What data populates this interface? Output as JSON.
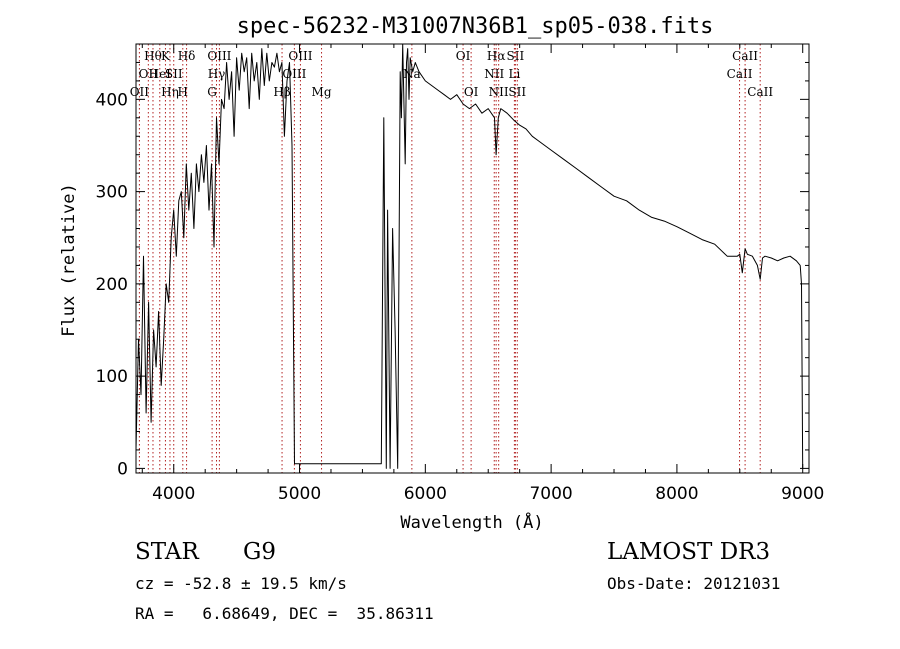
{
  "chart_data": {
    "type": "line",
    "title": "spec-56232-M31007N36B1_sp05-038.fits",
    "xlabel": "Wavelength (Å)",
    "ylabel": "Flux (relative)",
    "xlim": [
      3700,
      9050
    ],
    "ylim": [
      -5,
      460
    ],
    "x_ticks": [
      4000,
      5000,
      6000,
      7000,
      8000,
      9000
    ],
    "y_ticks": [
      0,
      100,
      200,
      300,
      400
    ],
    "line_color": "#000000",
    "marker_color": "#b22222",
    "series": [
      {
        "name": "flux",
        "x": [
          3700,
          3720,
          3740,
          3760,
          3780,
          3800,
          3820,
          3840,
          3860,
          3880,
          3900,
          3920,
          3940,
          3960,
          3980,
          4000,
          4020,
          4040,
          4060,
          4080,
          4100,
          4120,
          4140,
          4160,
          4180,
          4200,
          4220,
          4240,
          4260,
          4280,
          4300,
          4320,
          4340,
          4360,
          4380,
          4400,
          4420,
          4440,
          4460,
          4480,
          4500,
          4520,
          4540,
          4560,
          4580,
          4600,
          4620,
          4640,
          4660,
          4680,
          4700,
          4720,
          4740,
          4760,
          4780,
          4800,
          4820,
          4840,
          4860,
          4880,
          4900,
          4920,
          4940,
          4960,
          5000,
          5100,
          5300,
          5500,
          5650,
          5670,
          5690,
          5700,
          5720,
          5740,
          5760,
          5780,
          5800,
          5810,
          5820,
          5840,
          5850,
          5860,
          5870,
          5880,
          5900,
          5920,
          5950,
          6000,
          6050,
          6100,
          6150,
          6200,
          6250,
          6300,
          6350,
          6400,
          6450,
          6500,
          6550,
          6563,
          6580,
          6600,
          6650,
          6700,
          6750,
          6800,
          6850,
          6900,
          6950,
          7000,
          7100,
          7200,
          7300,
          7400,
          7500,
          7600,
          7700,
          7800,
          7900,
          8000,
          8100,
          8200,
          8300,
          8400,
          8480,
          8500,
          8520,
          8542,
          8560,
          8600,
          8640,
          8662,
          8680,
          8700,
          8750,
          8800,
          8850,
          8900,
          8950,
          8980,
          8990,
          9000
        ],
        "y": [
          20,
          140,
          80,
          230,
          60,
          180,
          50,
          150,
          110,
          170,
          90,
          140,
          200,
          180,
          250,
          280,
          230,
          290,
          300,
          250,
          330,
          280,
          320,
          260,
          330,
          300,
          340,
          310,
          350,
          280,
          330,
          240,
          380,
          330,
          400,
          390,
          440,
          400,
          430,
          360,
          445,
          410,
          450,
          430,
          445,
          390,
          450,
          420,
          440,
          400,
          455,
          415,
          450,
          420,
          440,
          435,
          450,
          430,
          440,
          360,
          420,
          440,
          350,
          5,
          5,
          5,
          5,
          5,
          5,
          380,
          0,
          280,
          0,
          260,
          150,
          0,
          430,
          380,
          460,
          330,
          440,
          455,
          400,
          445,
          430,
          440,
          430,
          420,
          415,
          410,
          405,
          400,
          405,
          395,
          390,
          395,
          385,
          390,
          380,
          340,
          380,
          390,
          385,
          378,
          372,
          368,
          360,
          355,
          350,
          345,
          335,
          325,
          315,
          305,
          295,
          290,
          280,
          272,
          268,
          262,
          255,
          248,
          243,
          230,
          230,
          232,
          212,
          238,
          232,
          230,
          220,
          205,
          228,
          230,
          228,
          225,
          228,
          230,
          225,
          220,
          200,
          0
        ]
      }
    ],
    "lines": [
      {
        "wl": 3727,
        "labels": [
          {
            "text": "OII",
            "row": 2
          }
        ]
      },
      {
        "wl": 3798,
        "labels": [
          {
            "text": "OII",
            "row": 1
          }
        ]
      },
      {
        "wl": 3835,
        "labels": [
          {
            "text": "Hθ",
            "row": 0
          }
        ]
      },
      {
        "wl": 3889,
        "labels": [
          {
            "text": "HeI",
            "row": 1
          }
        ]
      },
      {
        "wl": 3934,
        "labels": [
          {
            "text": "K",
            "row": 0
          }
        ]
      },
      {
        "wl": 3970,
        "labels": [
          {
            "text": "Hη",
            "row": 2
          }
        ]
      },
      {
        "wl": 4000,
        "labels": [
          {
            "text": "SII",
            "row": 1
          }
        ]
      },
      {
        "wl": 4072,
        "labels": [
          {
            "text": "H",
            "row": 2
          }
        ]
      },
      {
        "wl": 4102,
        "labels": [
          {
            "text": "Hδ",
            "row": 0
          }
        ]
      },
      {
        "wl": 4305,
        "labels": [
          {
            "text": "G",
            "row": 2
          }
        ]
      },
      {
        "wl": 4340,
        "labels": [
          {
            "text": "Hγ",
            "row": 1
          }
        ]
      },
      {
        "wl": 4363,
        "labels": [
          {
            "text": "OIII",
            "row": 0
          }
        ]
      },
      {
        "wl": 4861,
        "labels": [
          {
            "text": "Hβ",
            "row": 2
          }
        ]
      },
      {
        "wl": 4959,
        "labels": [
          {
            "text": "OIII",
            "row": 1
          }
        ]
      },
      {
        "wl": 5007,
        "labels": [
          {
            "text": "OIII",
            "row": 0
          }
        ]
      },
      {
        "wl": 5175,
        "labels": [
          {
            "text": "Mg",
            "row": 2
          }
        ]
      },
      {
        "wl": 5893,
        "labels": [
          {
            "text": "Na",
            "row": 1
          }
        ]
      },
      {
        "wl": 6300,
        "labels": [
          {
            "text": "OI",
            "row": 0
          }
        ]
      },
      {
        "wl": 6364,
        "labels": [
          {
            "text": "OI",
            "row": 2
          }
        ]
      },
      {
        "wl": 6548,
        "labels": [
          {
            "text": "NII",
            "row": 1
          }
        ]
      },
      {
        "wl": 6563,
        "labels": [
          {
            "text": "Hα",
            "row": 0
          }
        ]
      },
      {
        "wl": 6583,
        "labels": [
          {
            "text": "NII",
            "row": 2
          }
        ]
      },
      {
        "wl": 6708,
        "labels": [
          {
            "text": "Li",
            "row": 1
          }
        ]
      },
      {
        "wl": 6716,
        "labels": [
          {
            "text": "SII",
            "row": 0
          }
        ]
      },
      {
        "wl": 6731,
        "labels": [
          {
            "text": "SII",
            "row": 2
          }
        ]
      },
      {
        "wl": 8498,
        "labels": [
          {
            "text": "CaII",
            "row": 1
          }
        ]
      },
      {
        "wl": 8542,
        "labels": [
          {
            "text": "CaII",
            "row": 0
          }
        ]
      },
      {
        "wl": 8662,
        "labels": [
          {
            "text": "CaII",
            "row": 2
          }
        ]
      }
    ]
  },
  "info": {
    "class_label": "STAR",
    "subclass": "G9",
    "survey": "LAMOST DR3",
    "cz": "cz = -52.8 ± 19.5 km/s",
    "obs_date": "Obs-Date: 20121031",
    "coords": "RA =   6.68649, DEC =  35.86311"
  }
}
